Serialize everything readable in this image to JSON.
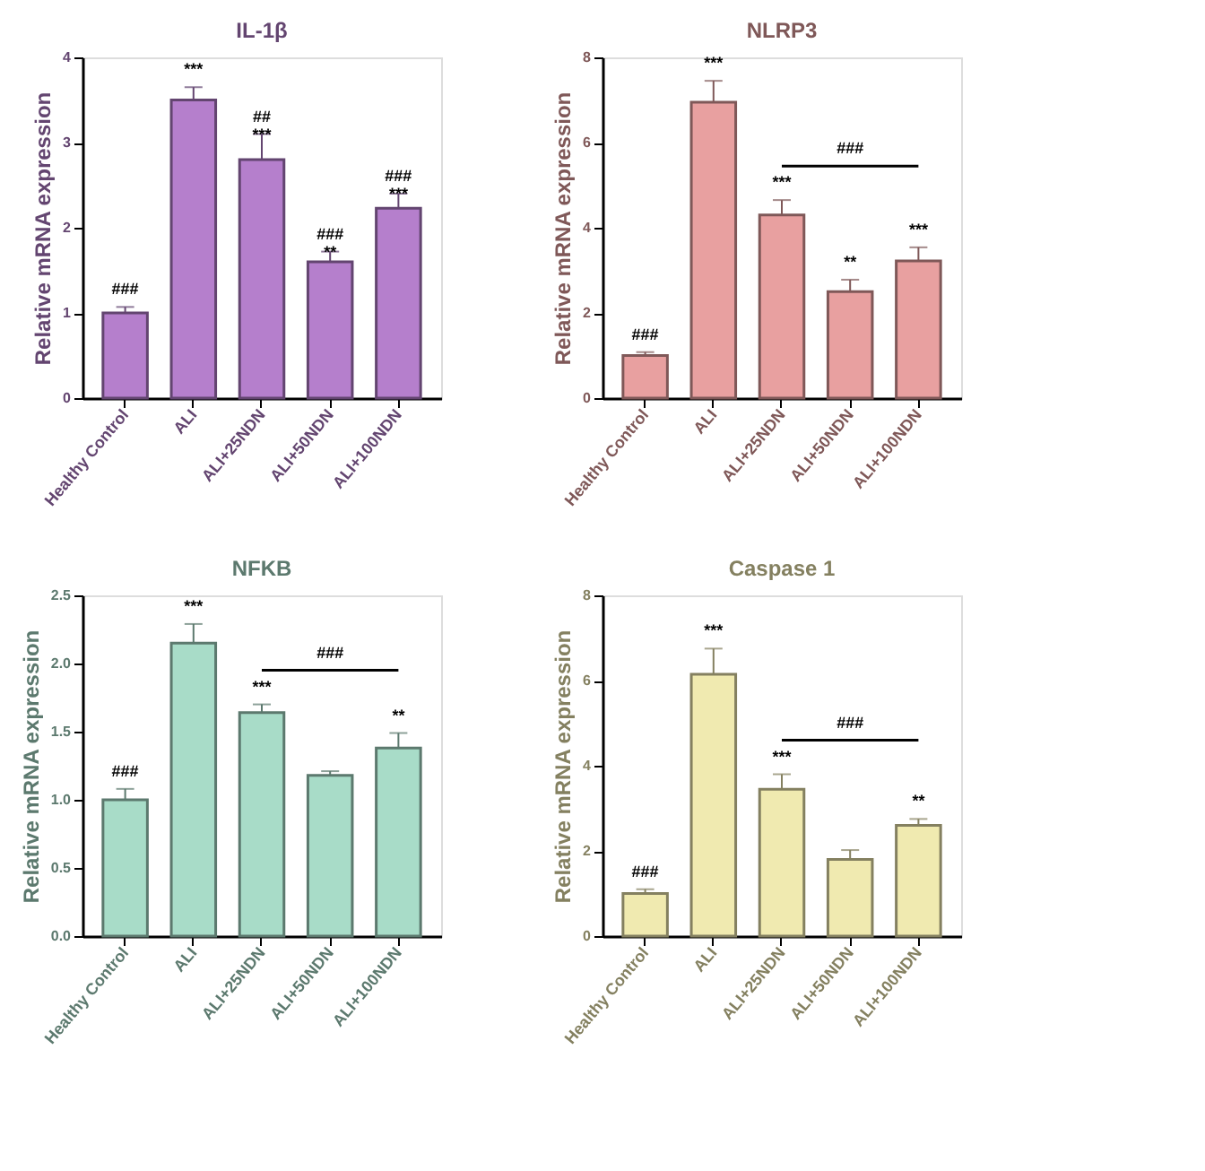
{
  "chart_data": [
    {
      "type": "bar",
      "title": "IL-1β",
      "ylabel": "Relative mRNA expression",
      "categories": [
        "Healthy Control",
        "ALI",
        "ALI+25NDN",
        "ALI+50NDN",
        "ALI+100NDN"
      ],
      "values": [
        1.0,
        3.5,
        2.8,
        1.6,
        2.23
      ],
      "errors": [
        0.07,
        0.15,
        0.3,
        0.12,
        0.17
      ],
      "color": "#b57fcc",
      "ylim": [
        0,
        4
      ],
      "yticks": [
        0,
        1,
        2,
        3,
        4
      ],
      "grid": false,
      "annotations": [
        {
          "text": "###",
          "x": "Healthy Control",
          "y": 1.07
        },
        {
          "text": "***",
          "x": "ALI",
          "y": 3.65
        },
        {
          "text": "##\n***",
          "x": "ALI+25NDN",
          "y": 3.1
        },
        {
          "text": "###\n**",
          "x": "ALI+50NDN",
          "y": 1.72
        },
        {
          "text": "###\n***",
          "x": "ALI+100NDN",
          "y": 2.4
        }
      ]
    },
    {
      "type": "bar",
      "title": "NLRP3",
      "ylabel": "Relative mRNA expression",
      "categories": [
        "Healthy Control",
        "ALI",
        "ALI+25NDN",
        "ALI+50NDN",
        "ALI+100NDN"
      ],
      "values": [
        1.0,
        6.95,
        4.3,
        2.5,
        3.22
      ],
      "errors": [
        0.08,
        0.5,
        0.35,
        0.28,
        0.32
      ],
      "color": "#e8a0a0",
      "ylim": [
        0,
        8
      ],
      "yticks": [
        0,
        2,
        4,
        6,
        8
      ],
      "grid": false,
      "annotations": [
        {
          "text": "###",
          "x": "Healthy Control",
          "y": 1.08
        },
        {
          "text": "***",
          "x": "ALI",
          "y": 7.45
        },
        {
          "text": "***",
          "x": "ALI+25NDN",
          "y": 4.65
        },
        {
          "text": "**",
          "x": "ALI+50NDN",
          "y": 2.78
        },
        {
          "text": "***",
          "x": "ALI+100NDN",
          "y": 3.54
        },
        "###"
      ]
    },
    {
      "type": "bar",
      "title": "NFKB",
      "ylabel": "Relative mRNA expression",
      "categories": [
        "Healthy Control",
        "ALI",
        "ALI+25NDN",
        "ALI+50NDN",
        "ALI+100NDN"
      ],
      "values": [
        1.0,
        2.15,
        1.64,
        1.18,
        1.38
      ],
      "errors": [
        0.08,
        0.14,
        0.06,
        0.03,
        0.11
      ],
      "color": "#a8dcc8",
      "ylim": [
        0,
        2.5
      ],
      "yticks": [
        {
          "value": 0,
          "label": "0.0"
        },
        {
          "value": 0.5,
          "label": "0.5"
        },
        {
          "value": 1,
          "label": "1.0"
        },
        {
          "value": 1.5,
          "label": "1.5"
        },
        {
          "value": 2,
          "label": "2.0"
        },
        {
          "value": 2.5,
          "label": "2.5"
        }
      ],
      "grid": false,
      "annotations": [
        {
          "text": "###",
          "x": "Healthy Control",
          "y": 1.08
        },
        {
          "text": "***",
          "x": "ALI",
          "y": 2.29
        },
        {
          "text": "***",
          "x": "ALI+25NDN",
          "y": 1.7
        },
        {
          "text": "**",
          "x": "ALI+100NDN",
          "y": 1.49
        },
        "###"
      ]
    },
    {
      "type": "bar",
      "title": "Caspase 1",
      "ylabel": "Relative mRNA expression",
      "categories": [
        "Healthy Control",
        "ALI",
        "ALI+25NDN",
        "ALI+50NDN",
        "ALI+100NDN"
      ],
      "values": [
        1.0,
        6.15,
        3.45,
        1.8,
        2.6
      ],
      "errors": [
        0.1,
        0.6,
        0.35,
        0.22,
        0.15
      ],
      "color": "#f0eab0",
      "ylim": [
        0,
        8
      ],
      "yticks": [
        0,
        2,
        4,
        6,
        8
      ],
      "grid": false,
      "annotations": [
        {
          "text": "###",
          "x": "Healthy Control",
          "y": 1.1
        },
        {
          "text": "***",
          "x": "ALI",
          "y": 6.75
        },
        {
          "text": "***",
          "x": "ALI+25NDN",
          "y": 3.8
        },
        {
          "text": "**",
          "x": "ALI+100NDN",
          "y": 2.75
        },
        "###"
      ]
    }
  ]
}
